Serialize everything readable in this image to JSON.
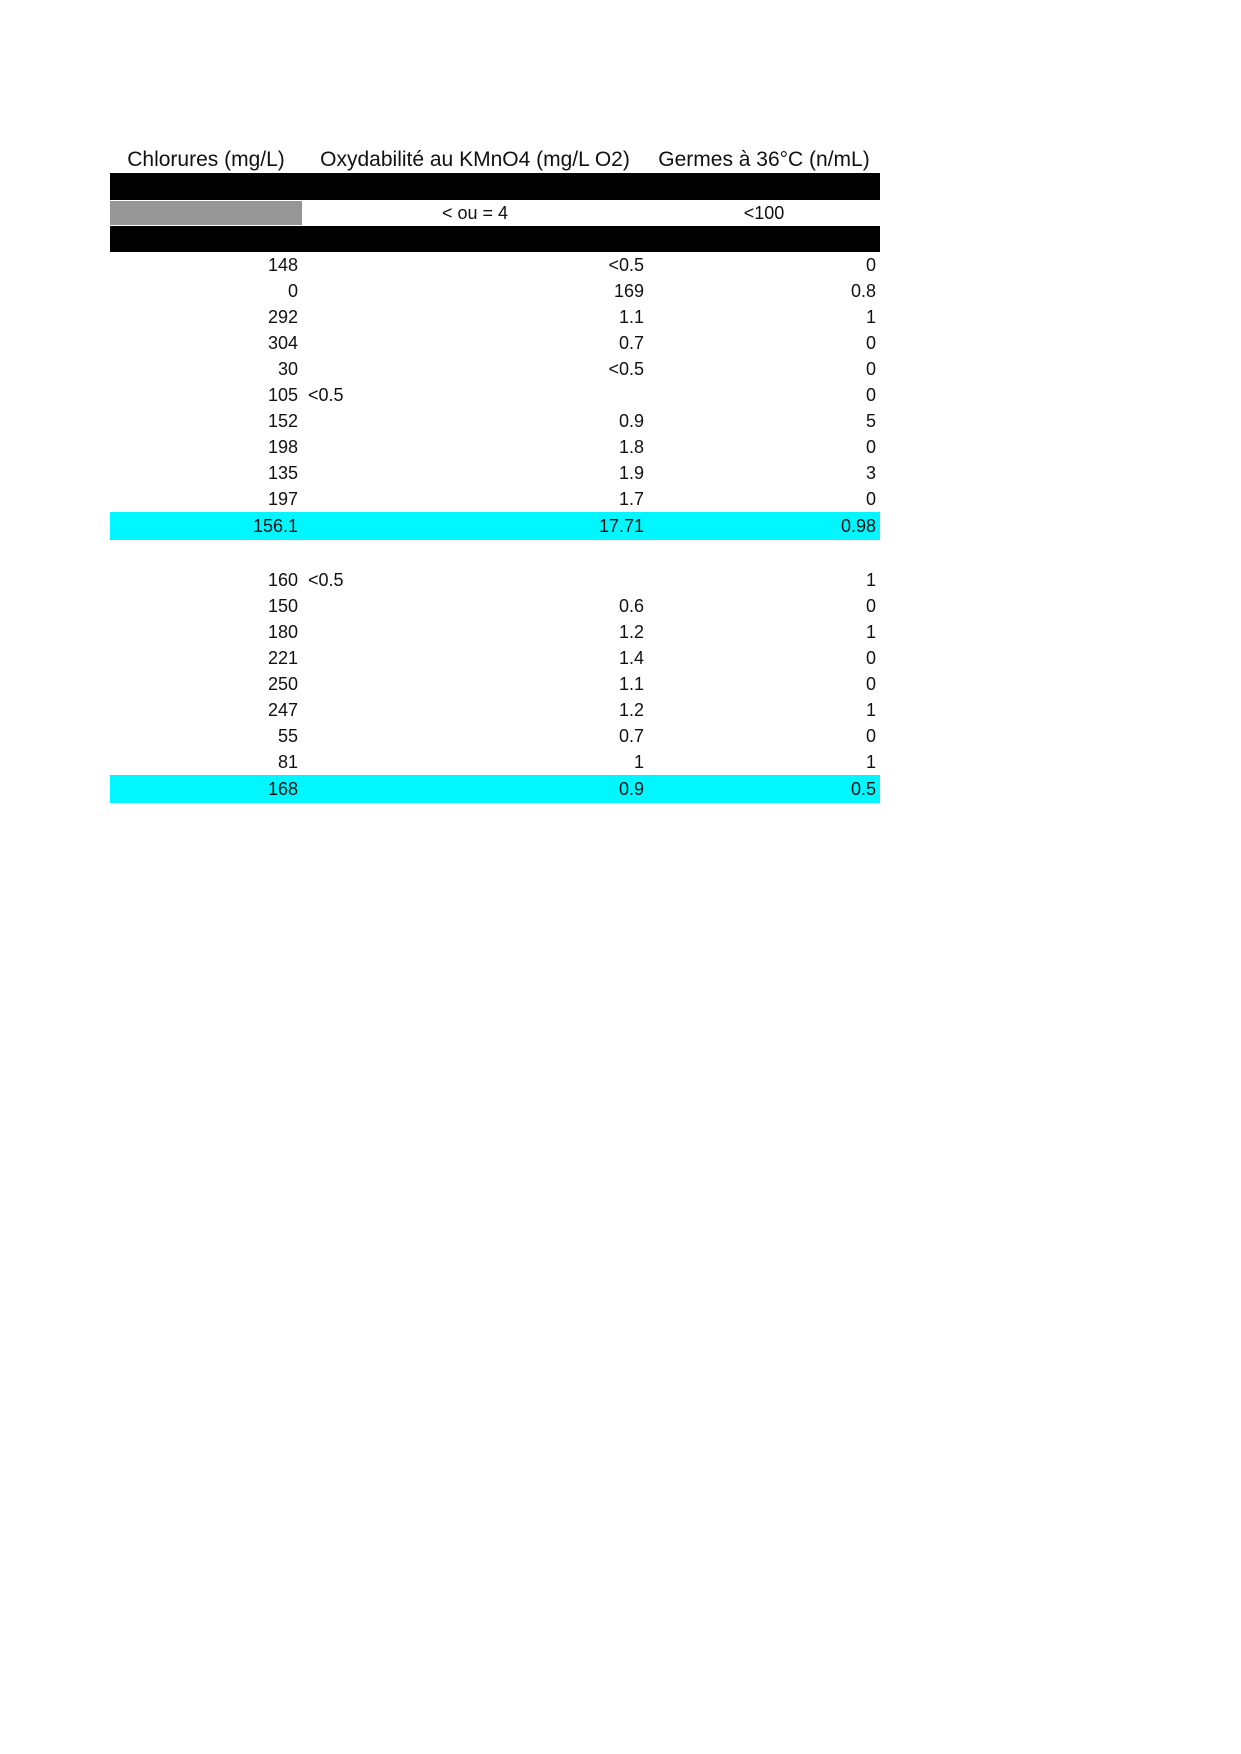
{
  "colors": {
    "highlight": "#00f7ff",
    "gray_cell": "#969696",
    "bar": "#000000"
  },
  "table": {
    "headers": {
      "chlorures": "Chlorures (mg/L)",
      "oxydabilite": "Oxydabilité au KMnO4 (mg/L O2)",
      "germes": "Germes à 36°C (n/mL)"
    },
    "limits": {
      "oxydabilite": "< ou = 4",
      "germes": "<100"
    },
    "blocks": [
      {
        "rows": [
          {
            "chlorures": "148",
            "oxydabilite": "<0.5",
            "oxy_align": "right",
            "germes": "0"
          },
          {
            "chlorures": "0",
            "oxydabilite": "169",
            "oxy_align": "right",
            "germes": "0.8"
          },
          {
            "chlorures": "292",
            "oxydabilite": "1.1",
            "oxy_align": "right",
            "germes": "1"
          },
          {
            "chlorures": "304",
            "oxydabilite": "0.7",
            "oxy_align": "right",
            "germes": "0"
          },
          {
            "chlorures": "30",
            "oxydabilite": "<0.5",
            "oxy_align": "right",
            "germes": "0"
          },
          {
            "chlorures": "105",
            "oxydabilite": "<0.5",
            "oxy_align": "left",
            "germes": "0"
          },
          {
            "chlorures": "152",
            "oxydabilite": "0.9",
            "oxy_align": "right",
            "germes": "5"
          },
          {
            "chlorures": "198",
            "oxydabilite": "1.8",
            "oxy_align": "right",
            "germes": "0"
          },
          {
            "chlorures": "135",
            "oxydabilite": "1.9",
            "oxy_align": "right",
            "germes": "3"
          },
          {
            "chlorures": "197",
            "oxydabilite": "1.7",
            "oxy_align": "right",
            "germes": "0"
          }
        ],
        "summary": {
          "chlorures": "156.1",
          "oxydabilite": "17.71",
          "germes": "0.98"
        }
      },
      {
        "rows": [
          {
            "chlorures": "160",
            "oxydabilite": "<0.5",
            "oxy_align": "left",
            "germes": "1"
          },
          {
            "chlorures": "150",
            "oxydabilite": "0.6",
            "oxy_align": "right",
            "germes": "0"
          },
          {
            "chlorures": "180",
            "oxydabilite": "1.2",
            "oxy_align": "right",
            "germes": "1"
          },
          {
            "chlorures": "221",
            "oxydabilite": "1.4",
            "oxy_align": "right",
            "germes": "0"
          },
          {
            "chlorures": "250",
            "oxydabilite": "1.1",
            "oxy_align": "right",
            "germes": "0"
          },
          {
            "chlorures": "247",
            "oxydabilite": "1.2",
            "oxy_align": "right",
            "germes": "1"
          },
          {
            "chlorures": "55",
            "oxydabilite": "0.7",
            "oxy_align": "right",
            "germes": "0"
          },
          {
            "chlorures": "81",
            "oxydabilite": "1",
            "oxy_align": "right",
            "germes": "1"
          }
        ],
        "summary": {
          "chlorures": "168",
          "oxydabilite": "0.9",
          "germes": "0.5"
        }
      }
    ]
  }
}
